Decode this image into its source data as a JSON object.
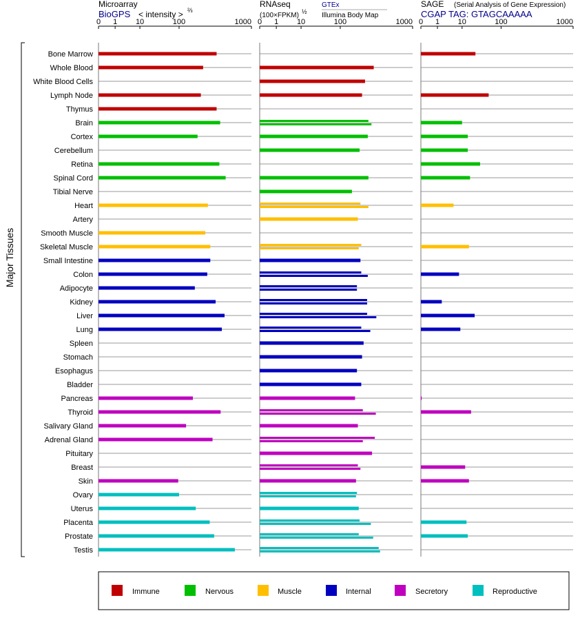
{
  "header": {
    "microarray_title": "Microarray",
    "microarray_source": "BioGPS",
    "microarray_unit": "< intensity >",
    "microarray_unit_exp": "⅔",
    "rnaseq_title": "RNAseq",
    "rnaseq_unit": "(100×FPKM)",
    "rnaseq_unit_exp": "½",
    "rnaseq_source1": "GTEx",
    "rnaseq_source2": "Illumina Body Map",
    "sage_title": "SAGE",
    "sage_subtitle": "(Serial Analysis of Gene Expression)",
    "sage_tag": "CGAP TAG: GTAGCAAAAA"
  },
  "y_group_label": "Major Tissues",
  "chart_data": {
    "type": "bar",
    "x_scale": "log-like (0, 1, 10, 100, 1000)",
    "x_ticks": [
      "0",
      "1",
      "10",
      "100",
      "1000"
    ],
    "categories": [
      "Bone Marrow",
      "Whole Blood",
      "White Blood Cells",
      "Lymph Node",
      "Thymus",
      "Brain",
      "Cortex",
      "Cerebellum",
      "Retina",
      "Spinal Cord",
      "Tibial Nerve",
      "Heart",
      "Artery",
      "Smooth Muscle",
      "Skeletal Muscle",
      "Small Intestine",
      "Colon",
      "Adipocyte",
      "Kidney",
      "Liver",
      "Lung",
      "Spleen",
      "Stomach",
      "Esophagus",
      "Bladder",
      "Pancreas",
      "Thyroid",
      "Salivary Gland",
      "Adrenal Gland",
      "Pituitary",
      "Breast",
      "Skin",
      "Ovary",
      "Uterus",
      "Placenta",
      "Prostate",
      "Testis"
    ],
    "tissue_group": [
      "Immune",
      "Immune",
      "Immune",
      "Immune",
      "Immune",
      "Nervous",
      "Nervous",
      "Nervous",
      "Nervous",
      "Nervous",
      "Nervous",
      "Muscle",
      "Muscle",
      "Muscle",
      "Muscle",
      "Internal",
      "Internal",
      "Internal",
      "Internal",
      "Internal",
      "Internal",
      "Internal",
      "Internal",
      "Internal",
      "Internal",
      "Secretory",
      "Secretory",
      "Secretory",
      "Secretory",
      "Secretory",
      "Secretory",
      "Secretory",
      "Reproductive",
      "Reproductive",
      "Reproductive",
      "Reproductive",
      "Reproductive"
    ],
    "panels": [
      {
        "name": "Microarray",
        "values": [
          [
            330
          ],
          [
            215
          ],
          [],
          [
            200
          ],
          [
            330
          ],
          [
            370
          ],
          [
            180
          ],
          [],
          [
            360
          ],
          [
            440
          ],
          [],
          [
            250
          ],
          [],
          [
            230
          ],
          [
            270
          ],
          [
            270
          ],
          [
            245
          ],
          [
            165
          ],
          [
            320
          ],
          [
            425
          ],
          [
            390
          ],
          [],
          [],
          [],
          [],
          [
            155
          ],
          [
            375
          ],
          [
            125
          ],
          [
            290
          ],
          [],
          [],
          [
            95
          ],
          [
            100
          ],
          [
            170
          ],
          [
            265
          ],
          [
            305
          ],
          [
            590
          ]
        ]
      },
      {
        "name": "RNAseq",
        "values": [
          [],
          [
            290
          ],
          [
            220
          ],
          [
            200
          ],
          [],
          [
            245,
            270
          ],
          [
            240
          ],
          [
            185
          ],
          [],
          [
            245
          ],
          [
            145
          ],
          [
            190,
            245
          ],
          [
            175
          ],
          [],
          [
            195,
            180
          ],
          [
            190
          ],
          [
            195,
            240
          ],
          [
            170,
            170
          ],
          [
            235,
            235
          ],
          [
            235,
            315
          ],
          [
            195,
            260
          ],
          [
            210
          ],
          [
            200
          ],
          [
            170
          ],
          [
            195
          ],
          [
            160
          ],
          [
            205,
            310
          ],
          [
            175
          ],
          [
            300,
            205
          ],
          [
            275
          ],
          [
            175,
            190
          ],
          [
            165
          ],
          [
            170,
            165
          ],
          [
            180
          ],
          [
            185,
            265
          ],
          [
            180,
            285
          ],
          [
            340,
            355
          ]
        ]
      },
      {
        "name": "SAGE",
        "values": [
          [
            22
          ],
          [],
          [],
          [
            48
          ],
          [],
          [
            10
          ],
          [
            14
          ],
          [
            14
          ],
          [
            29
          ],
          [
            16
          ],
          [],
          [
            4.5
          ],
          [],
          [],
          [
            15
          ],
          [],
          [
            7.5
          ],
          [],
          [
            1.5
          ],
          [
            21
          ],
          [
            8.5
          ],
          [],
          [],
          [],
          [],
          [
            0.05
          ],
          [
            17
          ],
          [],
          [],
          [],
          [
            12
          ],
          [
            15
          ],
          [],
          [],
          [
            13
          ],
          [
            14
          ],
          []
        ]
      }
    ],
    "legend": [
      "Immune",
      "Nervous",
      "Muscle",
      "Internal",
      "Secretory",
      "Reproductive"
    ],
    "colors": {
      "Immune": "#c00000",
      "Nervous": "#00bf00",
      "Muscle": "#ffbf00",
      "Internal": "#0000bf",
      "Secretory": "#bf00bf",
      "Reproductive": "#00bfbf"
    }
  }
}
